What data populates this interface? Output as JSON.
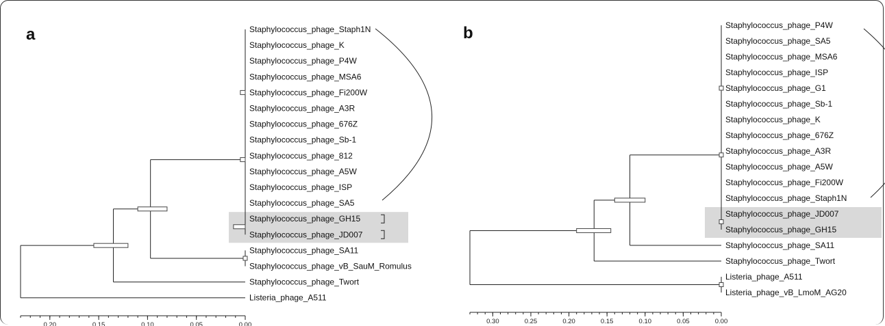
{
  "panels": [
    {
      "id": "a",
      "letter": "a",
      "axis_max": 0.23,
      "ticks": [
        {
          "value": 0.2,
          "label": "0.20"
        },
        {
          "value": 0.15,
          "label": "0.15"
        },
        {
          "value": 0.1,
          "label": "0.10"
        },
        {
          "value": 0.05,
          "label": "0.05"
        },
        {
          "value": 0.0,
          "label": "0.00"
        }
      ],
      "highlighted_leaves": [
        "Staphylococcus_phage_GH15",
        "Staphylococcus_phage_JD007"
      ],
      "arc_leaves": [
        "Staphylococcus_phage_Staph1N",
        "Staphylococcus_phage_SA5"
      ],
      "leaves": [
        "Staphylococcus_phage_Staph1N",
        "Staphylococcus_phage_K",
        "Staphylococcus_phage_P4W",
        "Staphylococcus_phage_MSA6",
        "Staphylococcus_phage_Fi200W",
        "Staphylococcus_phage_A3R",
        "Staphylococcus_phage_676Z",
        "Staphylococcus_phage_Sb-1",
        "Staphylococcus_phage_812",
        "Staphylococcus_phage_A5W",
        "Staphylococcus_phage_ISP",
        "Staphylococcus_phage_SA5",
        "Staphylococcus_phage_GH15",
        "Staphylococcus_phage_JD007",
        "Staphylococcus_phage_SA11",
        "Staphylococcus_phage_vB_SauM_Romulus",
        "Staphylococcus_phage_Twort",
        "Listeria_phage_A511"
      ],
      "tree": {
        "h": 0.23,
        "children": [
          {
            "h": 0.135,
            "hpd": [
              0.155,
              0.12
            ],
            "children": [
              {
                "h": 0.097,
                "hpd": [
                  0.11,
                  0.08
                ],
                "children": [
                  {
                    "h": 0.0,
                    "hpd": [
                      0.005,
                      0.0
                    ],
                    "children": [
                      {
                        "h": 0.0,
                        "hpd": [
                          0.005,
                          0.0
                        ],
                        "children": [
                          {
                            "leaf": "Staphylococcus_phage_Staph1N"
                          },
                          {
                            "leaf": "Staphylococcus_phage_K"
                          },
                          {
                            "leaf": "Staphylococcus_phage_P4W"
                          },
                          {
                            "leaf": "Staphylococcus_phage_MSA6"
                          },
                          {
                            "leaf": "Staphylococcus_phage_Fi200W"
                          },
                          {
                            "leaf": "Staphylococcus_phage_A3R"
                          },
                          {
                            "leaf": "Staphylococcus_phage_676Z"
                          },
                          {
                            "leaf": "Staphylococcus_phage_Sb-1"
                          },
                          {
                            "leaf": "Staphylococcus_phage_812"
                          }
                        ]
                      },
                      {
                        "leaf": "Staphylococcus_phage_A5W"
                      },
                      {
                        "leaf": "Staphylococcus_phage_ISP"
                      },
                      {
                        "leaf": "Staphylococcus_phage_SA5"
                      },
                      {
                        "h": 0.0,
                        "hpd": [
                          0.012,
                          0.0
                        ],
                        "children": [
                          {
                            "leaf": "Staphylococcus_phage_GH15"
                          },
                          {
                            "leaf": "Staphylococcus_phage_JD007"
                          }
                        ]
                      }
                    ]
                  },
                  {
                    "h": 0.0,
                    "hpd": [
                      0.004,
                      0.0
                    ],
                    "children": [
                      {
                        "leaf": "Staphylococcus_phage_SA11"
                      },
                      {
                        "leaf": "Staphylococcus_phage_vB_SauM_Romulus"
                      }
                    ]
                  }
                ]
              },
              {
                "leaf": "Staphylococcus_phage_Twort"
              }
            ]
          },
          {
            "leaf": "Listeria_phage_A511"
          }
        ]
      }
    },
    {
      "id": "b",
      "letter": "b",
      "axis_max": 0.33,
      "ticks": [
        {
          "value": 0.3,
          "label": "0.30"
        },
        {
          "value": 0.25,
          "label": "0.25"
        },
        {
          "value": 0.2,
          "label": "0.20"
        },
        {
          "value": 0.15,
          "label": "0.15"
        },
        {
          "value": 0.1,
          "label": "0.10"
        },
        {
          "value": 0.05,
          "label": "0.05"
        },
        {
          "value": 0.0,
          "label": "0.00"
        }
      ],
      "highlighted_leaves": [
        "Staphylococcus_phage_JD007",
        "Staphylococcus_phage_GH15"
      ],
      "arc_leaves": [
        "Staphylococcus_phage_P4W",
        "Staphylococcus_phage_Staph1N"
      ],
      "leaves": [
        "Staphylococcus_phage_P4W",
        "Staphylococcus_phage_SA5",
        "Staphylococcus_phage_MSA6",
        "Staphylococcus_phage_ISP",
        "Staphylococcus_phage_G1",
        "Staphylococcus_phage_Sb-1",
        "Staphylococcus_phage_K",
        "Staphylococcus_phage_676Z",
        "Staphylococcus_phage_A3R",
        "Staphylococcus_phage_A5W",
        "Staphylococcus_phage_Fi200W",
        "Staphylococcus_phage_Staph1N",
        "Staphylococcus_phage_JD007",
        "Staphylococcus_phage_GH15",
        "Staphylococcus_phage_SA11",
        "Staphylococcus_phage_Twort",
        "Listeria_phage_A511",
        "Listeria_phage_vB_LmoM_AG20"
      ],
      "tree": {
        "h": 0.33,
        "children": [
          {
            "h": 0.167,
            "hpd": [
              0.19,
              0.145
            ],
            "children": [
              {
                "h": 0.12,
                "hpd": [
                  0.14,
                  0.1
                ],
                "children": [
                  {
                    "h": 0.0,
                    "hpd": [
                      0.004,
                      0.0
                    ],
                    "children": [
                      {
                        "h": 0.0,
                        "hpd": [
                          0.004,
                          0.0
                        ],
                        "children": [
                          {
                            "leaf": "Staphylococcus_phage_P4W"
                          },
                          {
                            "leaf": "Staphylococcus_phage_SA5"
                          },
                          {
                            "leaf": "Staphylococcus_phage_MSA6"
                          },
                          {
                            "leaf": "Staphylococcus_phage_ISP"
                          },
                          {
                            "leaf": "Staphylococcus_phage_G1"
                          },
                          {
                            "leaf": "Staphylococcus_phage_Sb-1"
                          },
                          {
                            "leaf": "Staphylococcus_phage_K"
                          },
                          {
                            "leaf": "Staphylococcus_phage_676Z"
                          },
                          {
                            "leaf": "Staphylococcus_phage_A3R"
                          }
                        ]
                      },
                      {
                        "leaf": "Staphylococcus_phage_A5W"
                      },
                      {
                        "leaf": "Staphylococcus_phage_Fi200W"
                      },
                      {
                        "leaf": "Staphylococcus_phage_Staph1N"
                      },
                      {
                        "h": 0.0,
                        "hpd": [
                          0.004,
                          0.0
                        ],
                        "children": [
                          {
                            "leaf": "Staphylococcus_phage_JD007"
                          },
                          {
                            "leaf": "Staphylococcus_phage_GH15"
                          }
                        ]
                      }
                    ]
                  },
                  {
                    "leaf": "Staphylococcus_phage_SA11"
                  }
                ]
              },
              {
                "leaf": "Staphylococcus_phage_Twort"
              }
            ]
          },
          {
            "h": 0.0,
            "hpd": [
              0.003,
              0.0
            ],
            "children": [
              {
                "leaf": "Listeria_phage_A511"
              },
              {
                "leaf": "Listeria_phage_vB_LmoM_AG20"
              }
            ]
          }
        ]
      }
    }
  ]
}
